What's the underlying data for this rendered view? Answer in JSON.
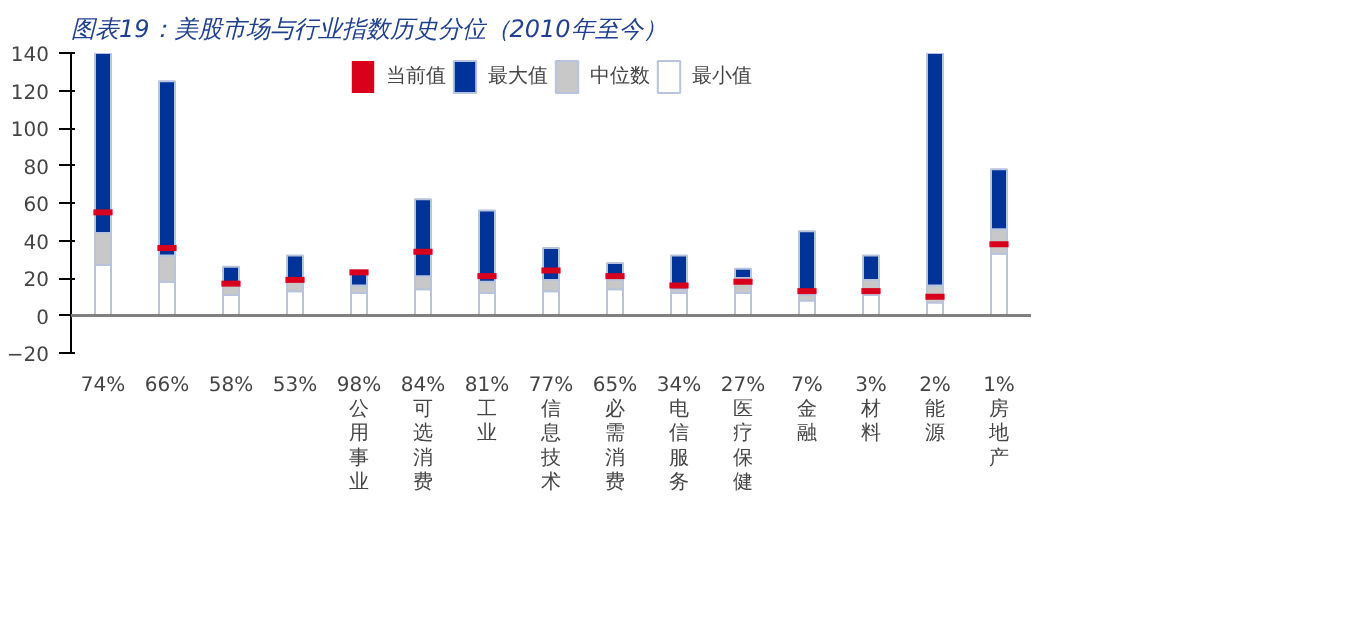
{
  "chart_data": {
    "type": "bar",
    "title": "图表19：美股市场与行业指数历史分位（2010年至今）",
    "stacked": true,
    "categories": [
      null,
      null,
      null,
      null,
      "公用事业",
      "可选消费",
      "工业",
      "信息技术",
      "必需消费",
      "电信服务",
      "医疗保健",
      "金融",
      "材料",
      "能源",
      "房地产"
    ],
    "series": [
      {
        "name": "最小值",
        "color": "#ffffff",
        "values": [
          27,
          18,
          11,
          13,
          12,
          14,
          12,
          13,
          14,
          12,
          12,
          8,
          11,
          7,
          33
        ]
      },
      {
        "name": "中位数",
        "color": "#c8c8c8",
        "values": [
          17,
          14,
          5,
          5,
          4,
          7,
          6,
          6,
          5,
          2,
          8,
          3,
          8,
          9,
          13
        ]
      },
      {
        "name": "最大值",
        "color": "#003399",
        "values": [
          96,
          93,
          10,
          14,
          8,
          41,
          38,
          17,
          9,
          18,
          5,
          34,
          13,
          124,
          32
        ]
      },
      {
        "name": "当前值",
        "type": "scatter",
        "color": "#d9001b",
        "values": [
          55,
          36,
          17,
          19,
          23,
          34,
          21,
          24,
          21,
          16,
          18,
          13,
          13,
          10,
          38
        ]
      }
    ],
    "annotations": [
      "74%",
      "66%",
      "58%",
      "53%",
      "98%",
      "84%",
      "81%",
      "77%",
      "65%",
      "34%",
      "27%",
      "7%",
      "3%",
      "2%",
      "1%"
    ],
    "ylim": [
      -20,
      140
    ],
    "yticks": [
      -20,
      0,
      20,
      40,
      60,
      80,
      100,
      120,
      140
    ],
    "grid": false,
    "legend": "top",
    "ref_lines": [
      {
        "axis": "y",
        "value": 0,
        "color": "#808080"
      }
    ]
  }
}
